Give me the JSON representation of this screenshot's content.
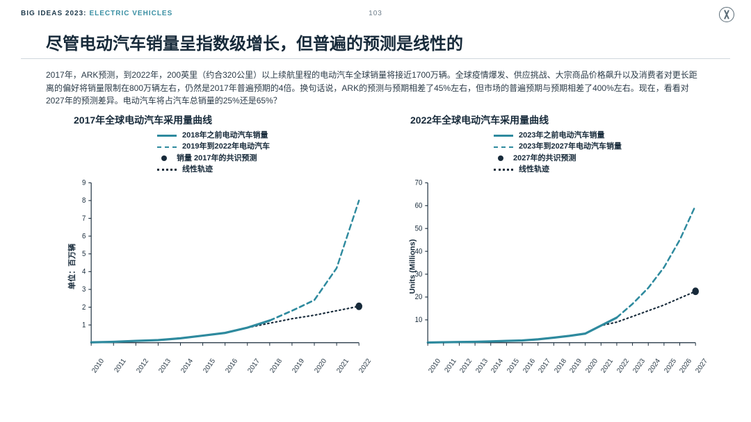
{
  "header": {
    "brand": "BIG IDEAS 2023:",
    "section": "ELECTRIC VEHICLES",
    "page_number": "103"
  },
  "title": "尽管电动汽车销量呈指数级增长，但普遍的预测是线性的",
  "body_text": "2017年，ARK预测，到2022年，200英里（约合320公里）以上续航里程的电动汽车全球销量将接近1700万辆。全球疫情爆发、供应挑战、大宗商品价格飙升以及消费者对更长距离的偏好将销量限制在800万辆左右，仍然是2017年普遍预期的4倍。换句话说，ARK的预测与预期相差了45%左右，但市场的普遍预期与预期相差了400%左右。现在，看看对2027年的预测差异。电动汽车将占汽车总销量的25%还是65%？",
  "left_chart": {
    "type": "line",
    "title": "2017年全球电动汽车采用量曲线",
    "ylabel": "单位：百万辆",
    "ylim": [
      0,
      9
    ],
    "yticks": [
      1,
      2,
      3,
      4,
      5,
      6,
      7,
      8,
      9
    ],
    "xcategories": [
      "2010",
      "2011",
      "2012",
      "2013",
      "2014",
      "2015",
      "2016",
      "2017",
      "2018",
      "2019",
      "2020",
      "2021",
      "2022"
    ],
    "legend": [
      {
        "label": "2018年之前电动汽车销量",
        "color": "#2e8a9e",
        "style": "solid"
      },
      {
        "label": "2019年到2022年电动汽车",
        "color": "#2e8a9e",
        "style": "dashed"
      },
      {
        "label": "销量  2017年的共识预测",
        "color": "#172a3a",
        "style": "dot-marker"
      },
      {
        "label": "线性轨迹",
        "color": "#172a3a",
        "style": "dotted"
      }
    ],
    "series_solid": {
      "color": "#2e8a9e",
      "width": 3,
      "values": [
        0.02,
        0.05,
        0.1,
        0.15,
        0.25,
        0.4,
        0.55,
        0.85,
        1.25,
        null,
        null,
        null,
        null
      ]
    },
    "series_dashed": {
      "color": "#2e8a9e",
      "width": 2.5,
      "values": [
        null,
        null,
        null,
        null,
        null,
        null,
        null,
        null,
        1.25,
        1.8,
        2.4,
        4.2,
        8.0
      ]
    },
    "series_dotted": {
      "color": "#172a3a",
      "width": 2,
      "values": [
        0.02,
        0.05,
        0.1,
        0.15,
        0.25,
        0.4,
        0.55,
        0.85,
        1.1,
        1.35,
        1.55,
        1.8,
        2.05
      ]
    },
    "marker": {
      "color": "#172a3a",
      "x": "2022",
      "y": 2.05,
      "r": 5
    },
    "axis_color": "#172a3a",
    "background_color": "#ffffff"
  },
  "right_chart": {
    "type": "line",
    "title": "2022年全球电动汽车采用量曲线",
    "ylabel": "Units (Millions)",
    "ylim": [
      0,
      70
    ],
    "yticks": [
      10,
      20,
      30,
      40,
      50,
      60,
      70
    ],
    "xcategories": [
      "2010",
      "2011",
      "2012",
      "2013",
      "2014",
      "2015",
      "2016",
      "2017",
      "2018",
      "2019",
      "2020",
      "2021",
      "2022",
      "2023",
      "2024",
      "2025",
      "2026",
      "2027"
    ],
    "legend": [
      {
        "label": "2023年之前电动汽车销量",
        "color": "#2e8a9e",
        "style": "solid"
      },
      {
        "label": "2023年到2027年电动汽车销量",
        "color": "#2e8a9e",
        "style": "dashed"
      },
      {
        "label": "2027年的共识预测",
        "color": "#172a3a",
        "style": "dot-marker"
      },
      {
        "label": "线性轨迹",
        "color": "#172a3a",
        "style": "dotted"
      }
    ],
    "series_solid": {
      "color": "#2e8a9e",
      "width": 3,
      "values": [
        0.1,
        0.2,
        0.3,
        0.4,
        0.6,
        0.8,
        1.0,
        1.5,
        2.2,
        3.0,
        4.0,
        7.5,
        11.0,
        null,
        null,
        null,
        null,
        null
      ]
    },
    "series_dashed": {
      "color": "#2e8a9e",
      "width": 2.5,
      "values": [
        null,
        null,
        null,
        null,
        null,
        null,
        null,
        null,
        null,
        null,
        null,
        null,
        11.0,
        17.0,
        24.0,
        33.0,
        45.0,
        60.0
      ]
    },
    "series_dotted": {
      "color": "#172a3a",
      "width": 2,
      "values": [
        0.1,
        0.2,
        0.3,
        0.4,
        0.6,
        0.8,
        1.0,
        1.5,
        2.2,
        3.0,
        4.0,
        7.5,
        9.0,
        11.5,
        14.0,
        16.5,
        19.5,
        22.5
      ]
    },
    "marker": {
      "color": "#172a3a",
      "x": "2027",
      "y": 22.5,
      "r": 5
    },
    "axis_color": "#172a3a",
    "background_color": "#ffffff"
  }
}
